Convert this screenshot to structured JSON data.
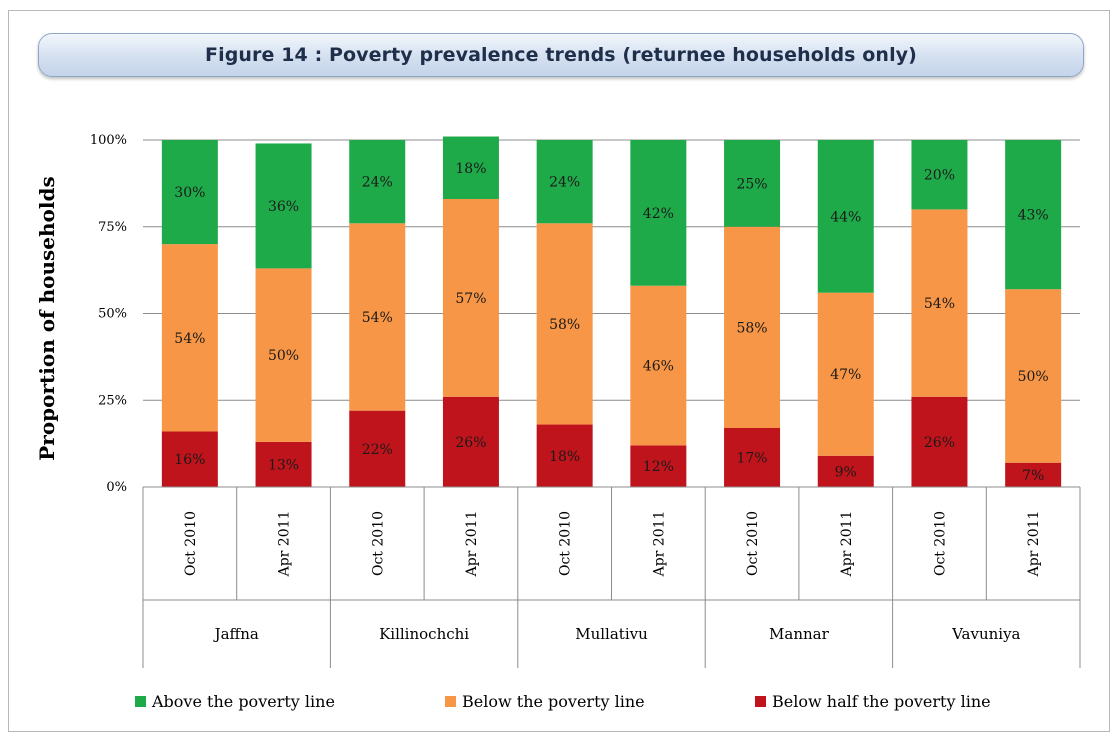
{
  "title": "Figure 14 : Poverty prevalence trends (returnee households only)",
  "chart_data": {
    "type": "bar",
    "stacked": true,
    "ylabel": "Proportion of households",
    "yticks": [
      "0%",
      "25%",
      "50%",
      "75%",
      "100%"
    ],
    "ylim": [
      0,
      100
    ],
    "grid": true,
    "legend_position": "bottom",
    "groups": [
      "Jaffna",
      "Killinochchi",
      "Mullativu",
      "Mannar",
      "Vavuniya"
    ],
    "categories": [
      "Oct 2010",
      "Apr 2011",
      "Oct 2010",
      "Apr 2011",
      "Oct 2010",
      "Apr 2011",
      "Oct 2010",
      "Apr 2011",
      "Oct 2010",
      "Apr 2011"
    ],
    "series": [
      {
        "name": "Below half the poverty line",
        "color": "#c0141c",
        "values": [
          16,
          13,
          22,
          26,
          18,
          12,
          17,
          9,
          26,
          7
        ],
        "labels": [
          "16%",
          "13%",
          "22%",
          "26%",
          "18%",
          "12%",
          "17%",
          "9%",
          "26%",
          "7%"
        ]
      },
      {
        "name": "Below the poverty line",
        "color": "#f79646",
        "values": [
          54,
          50,
          54,
          57,
          58,
          46,
          58,
          47,
          54,
          50
        ],
        "labels": [
          "54%",
          "50%",
          "54%",
          "57%",
          "58%",
          "46%",
          "58%",
          "47%",
          "54%",
          "50%"
        ]
      },
      {
        "name": "Above the poverty line",
        "color": "#1faa4a",
        "values": [
          30,
          36,
          24,
          18,
          24,
          42,
          25,
          44,
          20,
          43
        ],
        "labels": [
          "30%",
          "36%",
          "24%",
          "18%",
          "24%",
          "42%",
          "25%",
          "44%",
          "20%",
          "43%"
        ]
      }
    ]
  },
  "legend": [
    {
      "label": "Above the poverty line",
      "color": "#1faa4a"
    },
    {
      "label": "Below the poverty line",
      "color": "#f79646"
    },
    {
      "label": "Below half the poverty line",
      "color": "#c0141c"
    }
  ]
}
